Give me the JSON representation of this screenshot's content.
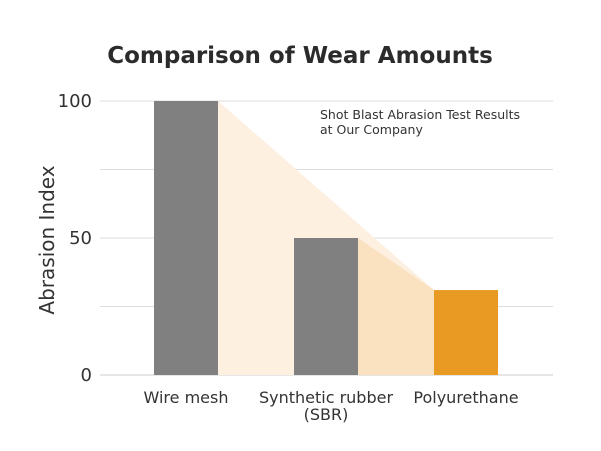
{
  "chart_data": {
    "type": "bar",
    "title": "Comparison of Wear Amounts",
    "ylabel": "Abrasion Index",
    "xlabel": "",
    "ylim": [
      0,
      100
    ],
    "yticks": [
      {
        "value": 0,
        "label": "0"
      },
      {
        "value": 50,
        "label": "50"
      },
      {
        "value": 100,
        "label": "100"
      }
    ],
    "minor_gridlines": [
      25,
      75
    ],
    "grid": true,
    "categories": [
      {
        "lines": [
          "Wire mesh"
        ]
      },
      {
        "lines": [
          "Synthetic rubber",
          "(SBR)"
        ]
      },
      {
        "lines": [
          "Polyurethane"
        ]
      }
    ],
    "values": [
      100,
      50,
      31
    ],
    "annotation": {
      "lines": [
        "Shot Blast Abrasion Test Results",
        "at Our Company"
      ],
      "position": "top-right"
    },
    "colors": {
      "bar_default": "#808080",
      "bar_highlight": "#E99A22",
      "trend_fill_light": "#FDF0E0",
      "trend_fill_dark": "#FAE1C0",
      "grid": "#dddddd",
      "axis": "#cccccc"
    },
    "highlight_index": 2
  }
}
